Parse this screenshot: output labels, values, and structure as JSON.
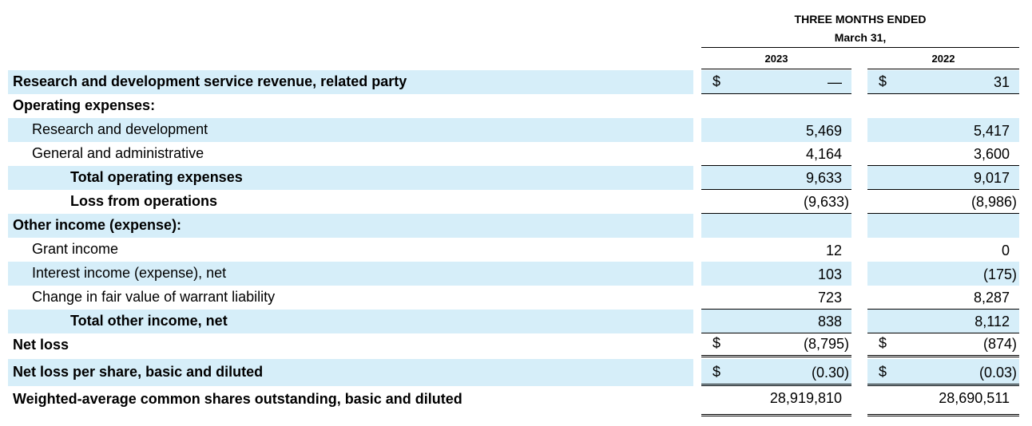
{
  "header": {
    "period_line1": "THREE MONTHS ENDED",
    "period_line2": "March 31,",
    "year_1": "2023",
    "year_2": "2022"
  },
  "rows": [
    {
      "label": "Research and development service revenue, related party",
      "sym1": "$",
      "v1": "—",
      "sym2": "$",
      "v2": "31"
    },
    {
      "label": "Operating expenses:",
      "sym1": "",
      "v1": "",
      "sym2": "",
      "v2": ""
    },
    {
      "label": "Research and development",
      "sym1": "",
      "v1": "5,469",
      "sym2": "",
      "v2": "5,417"
    },
    {
      "label": "General and administrative",
      "sym1": "",
      "v1": "4,164",
      "sym2": "",
      "v2": "3,600"
    },
    {
      "label": "Total operating expenses",
      "sym1": "",
      "v1": "9,633",
      "sym2": "",
      "v2": "9,017"
    },
    {
      "label": "Loss from operations",
      "sym1": "",
      "v1": "(9,633)",
      "sym2": "",
      "v2": "(8,986)"
    },
    {
      "label": "Other income (expense):",
      "sym1": "",
      "v1": "",
      "sym2": "",
      "v2": ""
    },
    {
      "label": "Grant income",
      "sym1": "",
      "v1": "12",
      "sym2": "",
      "v2": "0"
    },
    {
      "label": "Interest income (expense), net",
      "sym1": "",
      "v1": "103",
      "sym2": "",
      "v2": "(175)"
    },
    {
      "label": "Change in fair value of warrant liability",
      "sym1": "",
      "v1": "723",
      "sym2": "",
      "v2": "8,287"
    },
    {
      "label": "Total other income, net",
      "sym1": "",
      "v1": "838",
      "sym2": "",
      "v2": "8,112"
    },
    {
      "label": "Net loss",
      "sym1": "$",
      "v1": "(8,795)",
      "sym2": "$",
      "v2": "(874)"
    },
    {
      "label": "Net loss per share, basic and diluted",
      "sym1": "$",
      "v1": "(0.30)",
      "sym2": "$",
      "v2": "(0.03)"
    },
    {
      "label": "Weighted-average common shares outstanding, basic and diluted",
      "sym1": "",
      "v1": "28,919,810",
      "sym2": "",
      "v2": "28,690,511"
    }
  ]
}
